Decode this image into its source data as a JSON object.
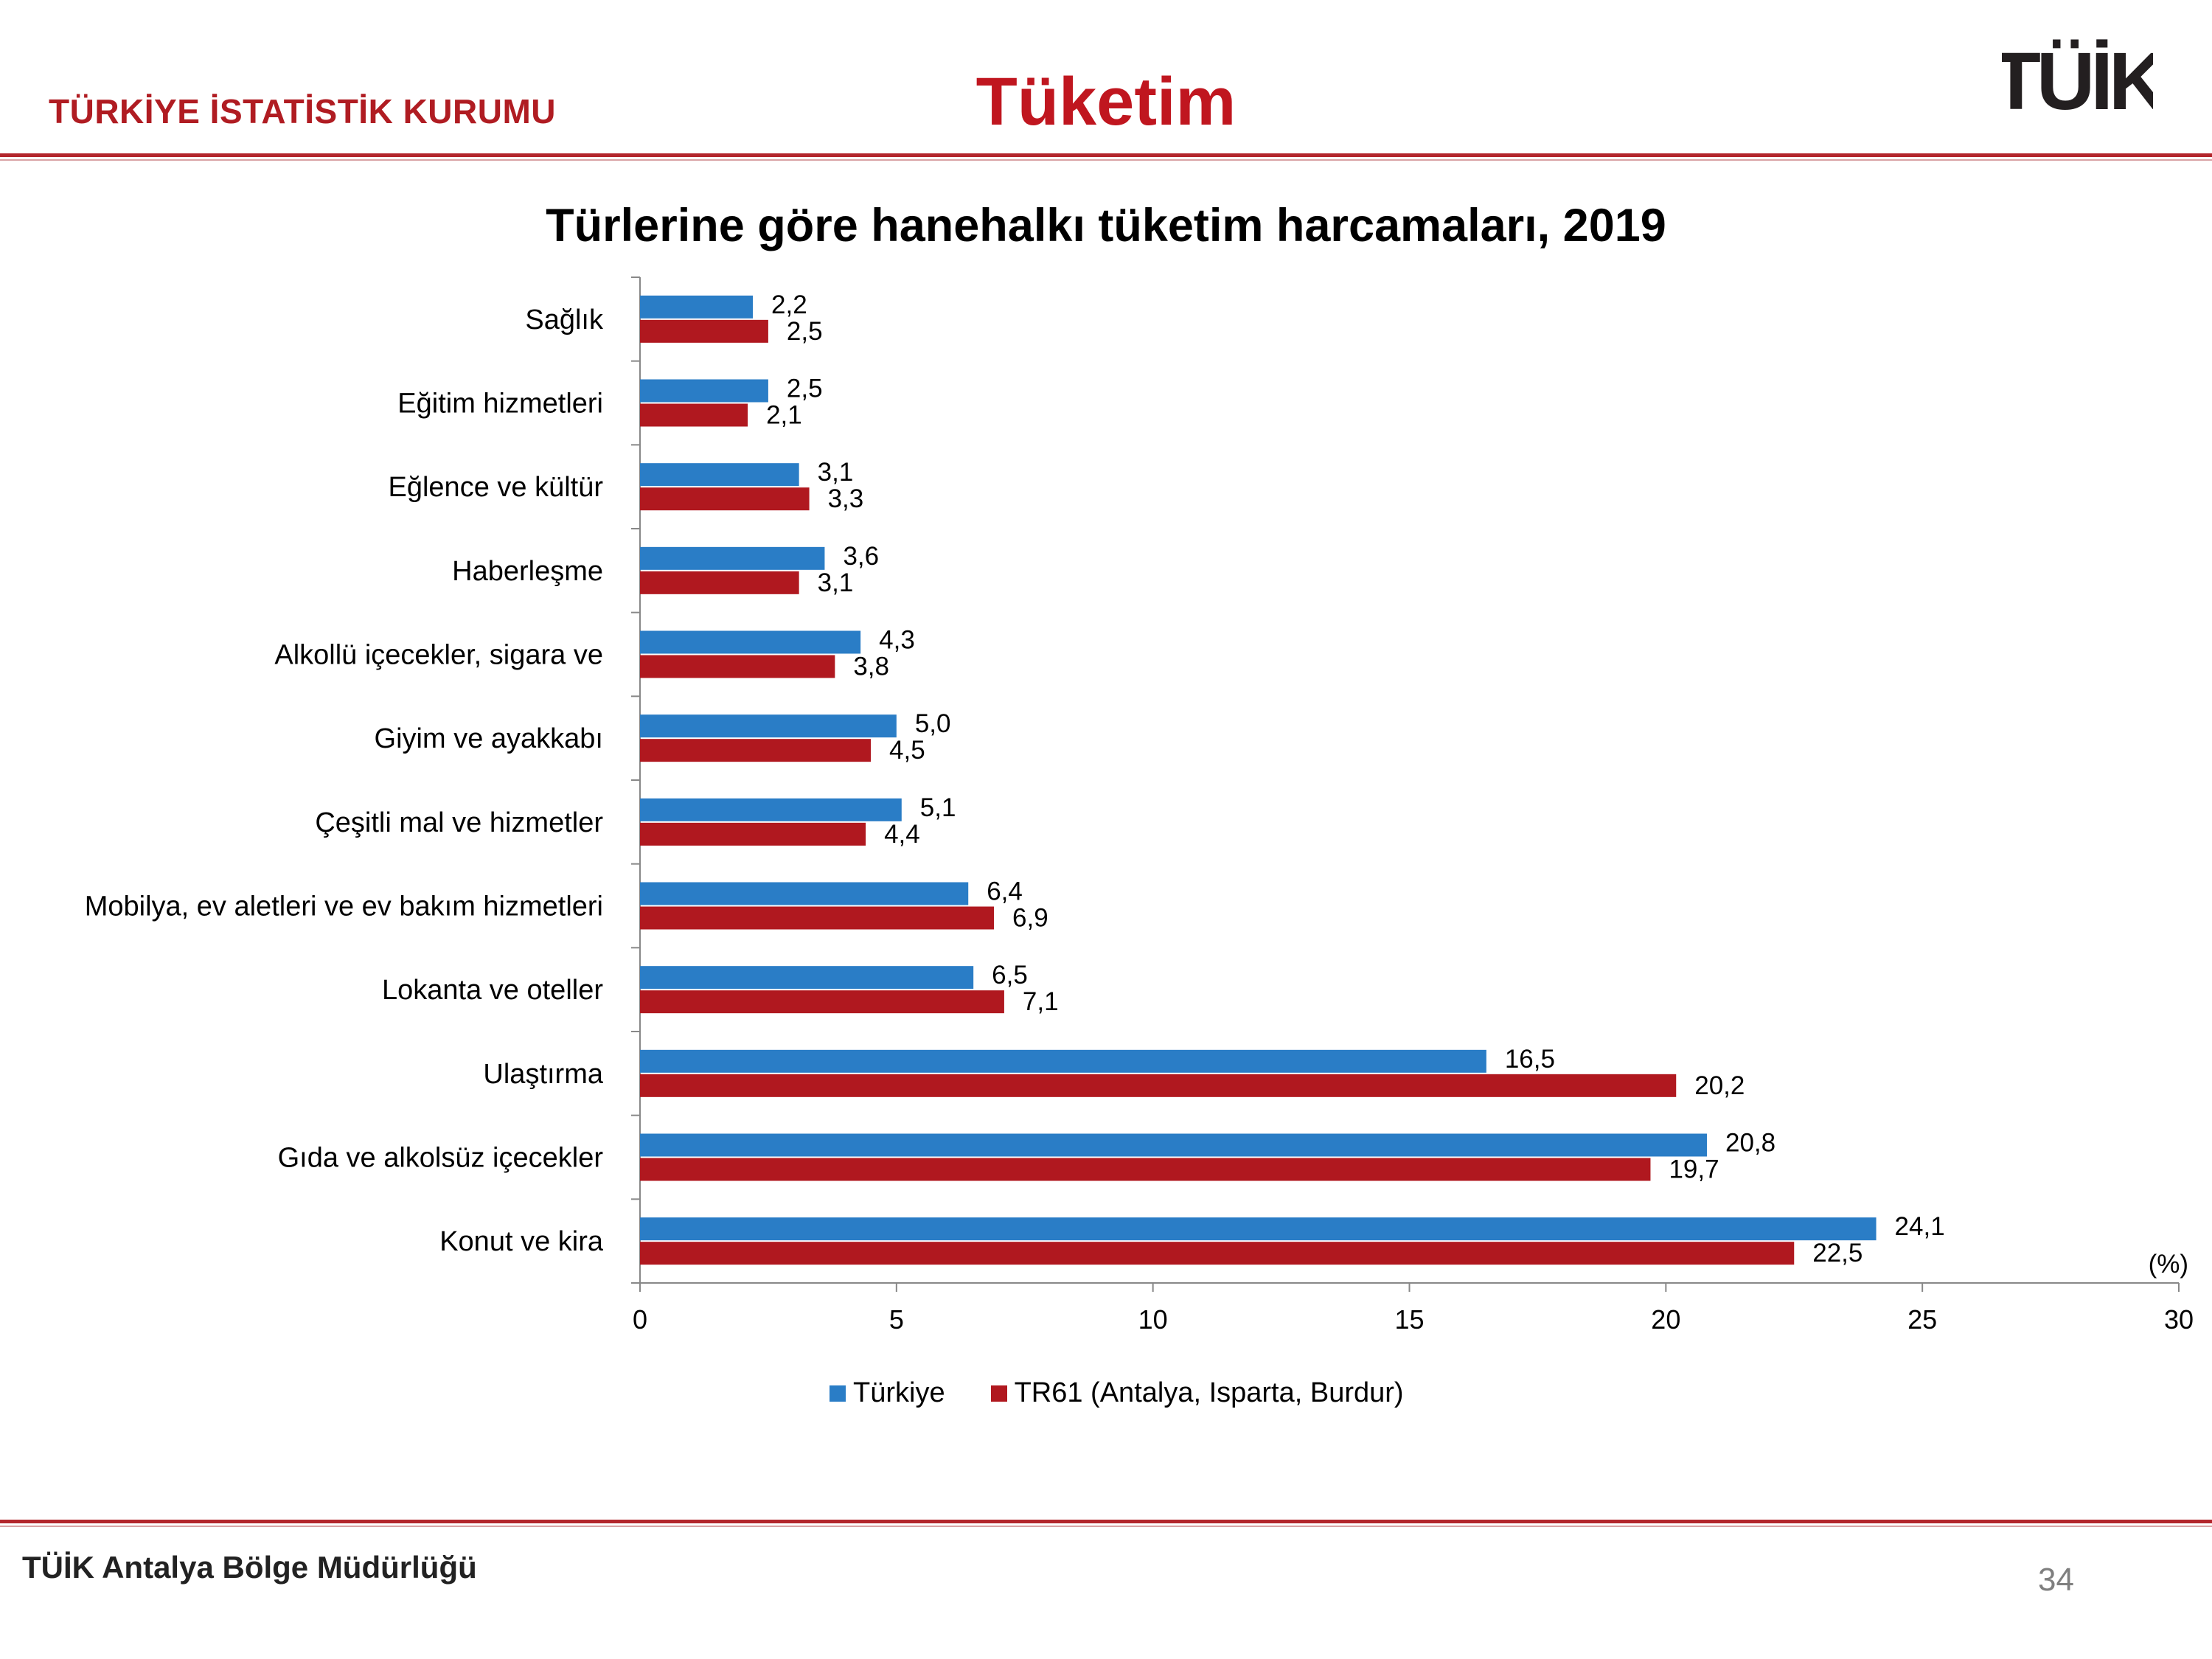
{
  "header": {
    "org_name": "TÜRKİYE İSTATİSTİK KURUMU",
    "slide_title": "Tüketim",
    "logo_text": "TÜİK"
  },
  "footer": {
    "office": "TÜİK Antalya Bölge Müdürlüğü",
    "page_number": "34"
  },
  "colors": {
    "turkiye": "#2a7dc6",
    "tr61": "#b0181f",
    "accent": "#c0161f"
  },
  "chart_data": {
    "type": "bar",
    "orientation": "horizontal",
    "title": "Türlerine göre hanehalkı tüketim harcamaları, 2019",
    "unit_label": "(%)",
    "categories": [
      "Sağlık",
      "Eğitim hizmetleri",
      "Eğlence ve kültür",
      "Haberleşme",
      "Alkollü içecekler, sigara ve",
      "Giyim ve ayakkabı",
      "Çeşitli mal ve hizmetler",
      "Mobilya, ev aletleri ve ev bakım hizmetleri",
      "Lokanta ve oteller",
      "Ulaştırma",
      "Gıda ve alkolsüz içecekler",
      "Konut ve kira"
    ],
    "series": [
      {
        "name": "Türkiye",
        "values": [
          2.2,
          2.5,
          3.1,
          3.6,
          4.3,
          5.0,
          5.1,
          6.4,
          6.5,
          16.5,
          20.8,
          24.1
        ],
        "labels": [
          "2,2",
          "2,5",
          "3,1",
          "3,6",
          "4,3",
          "5,0",
          "5,1",
          "6,4",
          "6,5",
          "16,5",
          "20,8",
          "24,1"
        ]
      },
      {
        "name": "TR61 (Antalya, Isparta, Burdur)",
        "values": [
          2.5,
          2.1,
          3.3,
          3.1,
          3.8,
          4.5,
          4.4,
          6.9,
          7.1,
          20.2,
          19.7,
          22.5
        ],
        "labels": [
          "2,5",
          "2,1",
          "3,3",
          "3,1",
          "3,8",
          "4,5",
          "4,4",
          "6,9",
          "7,1",
          "20,2",
          "19,7",
          "22,5"
        ]
      }
    ],
    "xlim": [
      0,
      30
    ],
    "xticks": [
      "0",
      "5",
      "10",
      "15",
      "20",
      "25",
      "30"
    ],
    "grid": false,
    "legend_position": "bottom"
  }
}
